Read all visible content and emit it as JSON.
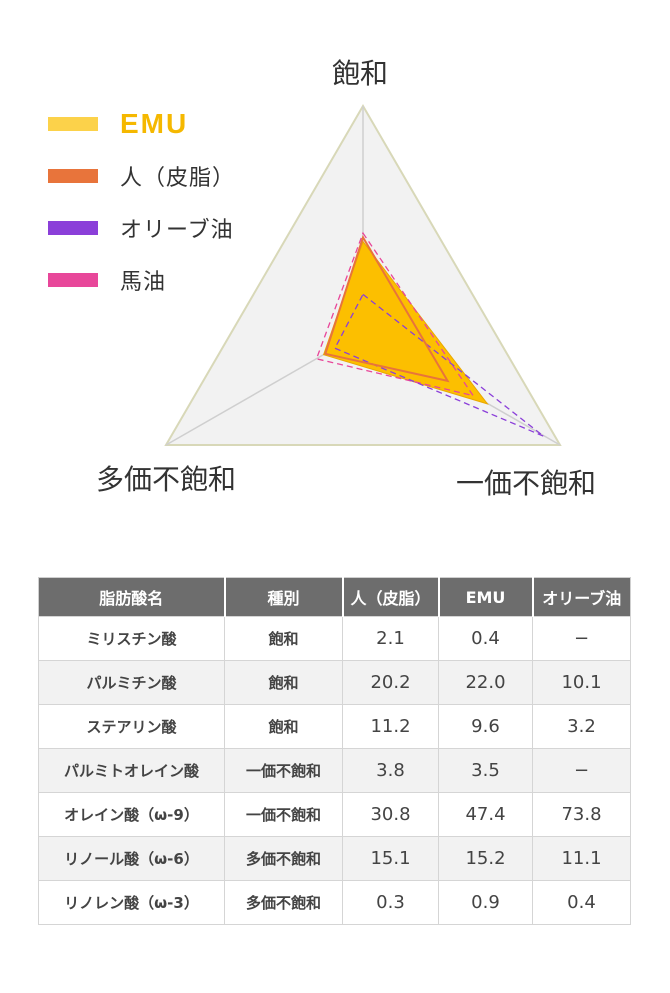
{
  "chart_data": {
    "type": "radar",
    "axes": [
      "飽和",
      "一価不飽和",
      "多価不飽和"
    ],
    "series": [
      {
        "name": "EMU",
        "values": [
          32.0,
          50.9,
          16.1
        ],
        "color": "#fcbf00",
        "style": "filled"
      },
      {
        "name": "人（皮脂）",
        "values": [
          33.5,
          34.6,
          15.4
        ],
        "color": "#e8743b",
        "style": "solid"
      },
      {
        "name": "オリーブ油",
        "values": [
          13.3,
          73.8,
          11.5
        ],
        "color": "#8b3fd9",
        "style": "dashed"
      },
      {
        "name": "馬油",
        "values": [
          35.0,
          45.0,
          19.0
        ],
        "color": "#e8479a",
        "style": "dashed"
      }
    ],
    "rmax": 80,
    "grid": true,
    "legend": "top-left"
  },
  "legend_colors": {
    "EMU": "#fcbf00",
    "sebum": "#e8743b",
    "olive": "#8b3fd9",
    "horse": "#e8479a"
  },
  "table": {
    "headers": [
      "脂肪酸名",
      "種別",
      "人（皮脂）",
      "EMU",
      "オリーブ油"
    ],
    "rows": [
      [
        "ミリスチン酸",
        "飽和",
        "2.1",
        "0.4",
        "−"
      ],
      [
        "パルミチン酸",
        "飽和",
        "20.2",
        "22.0",
        "10.1"
      ],
      [
        "ステアリン酸",
        "飽和",
        "11.2",
        "9.6",
        "3.2"
      ],
      [
        "パルミトオレイン酸",
        "一価不飽和",
        "3.8",
        "3.5",
        "−"
      ],
      [
        "オレイン酸（ω-9）",
        "一価不飽和",
        "30.8",
        "47.4",
        "73.8"
      ],
      [
        "リノール酸（ω-6）",
        "多価不飽和",
        "15.1",
        "15.2",
        "11.1"
      ],
      [
        "リノレン酸（ω-3）",
        "多価不飽和",
        "0.3",
        "0.9",
        "0.4"
      ]
    ]
  }
}
